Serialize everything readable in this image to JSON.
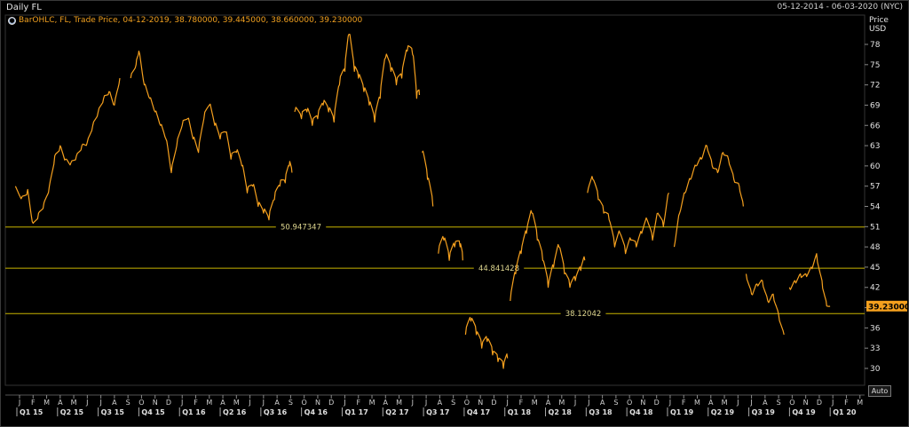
{
  "header": {
    "title": "Daily FL",
    "date_range": "05-12-2014 - 06-03-2020 (NYC)"
  },
  "legend": {
    "text": "BarOHLC, FL, Trade Price, 04-12-2019, 38.780000, 39.445000, 38.660000, 39.230000"
  },
  "axis": {
    "y_title_1": "Price",
    "y_title_2": "USD",
    "auto_button": "Auto"
  },
  "colors": {
    "price": "#f5a01e",
    "levels": "#c8b400",
    "last_price_box": "#f5a01e",
    "background": "#000000"
  },
  "chart_data": {
    "type": "line",
    "series_kind": "daily OHLC bars",
    "ylim": [
      27.5,
      80.5
    ],
    "y_ticks": [
      30,
      33,
      36,
      39,
      42,
      45,
      48,
      51,
      54,
      57,
      60,
      63,
      66,
      69,
      72,
      75,
      78
    ],
    "months": [
      "J",
      "F",
      "M",
      "A",
      "M",
      "J",
      "J",
      "A",
      "S",
      "O",
      "N",
      "D",
      "J",
      "F",
      "M",
      "A",
      "M",
      "J",
      "J",
      "A",
      "S",
      "O",
      "N",
      "D",
      "J",
      "F",
      "M",
      "A",
      "M",
      "J",
      "J",
      "A",
      "S",
      "O",
      "N",
      "D",
      "J",
      "F",
      "M",
      "A",
      "M",
      "J",
      "J",
      "A",
      "S",
      "O",
      "N",
      "D",
      "J",
      "F",
      "M",
      "A",
      "M",
      "J",
      "J",
      "A",
      "S",
      "O",
      "N",
      "D",
      "J",
      "F",
      "M"
    ],
    "quarters": [
      "Q1 15",
      "Q2 15",
      "Q3 15",
      "Q4 15",
      "Q1 16",
      "Q2 16",
      "Q3 16",
      "Q4 16",
      "Q1 17",
      "Q2 17",
      "Q3 17",
      "Q4 17",
      "Q1 18",
      "Q2 18",
      "Q3 18",
      "Q4 18",
      "Q1 19",
      "Q2 19",
      "Q3 19",
      "Q4 19",
      "Q1 20"
    ],
    "horizontal_levels": [
      {
        "label": "50.947347",
        "value": 50.947347
      },
      {
        "label": "44.841428",
        "value": 44.841428
      },
      {
        "label": "38.12042",
        "value": 38.12042
      }
    ],
    "last_price": "39.230000",
    "x_index_range": [
      0,
      62
    ],
    "points": [
      [
        -0.3,
        57
      ],
      [
        0.2,
        55.5
      ],
      [
        0.6,
        56.5
      ],
      [
        1.0,
        51.5
      ],
      [
        1.4,
        53
      ],
      [
        1.8,
        54.5
      ],
      [
        2.2,
        57
      ],
      [
        2.6,
        61.5
      ],
      [
        3.0,
        63
      ],
      [
        3.4,
        61
      ],
      [
        3.8,
        60.5
      ],
      [
        4.2,
        61.5
      ],
      [
        4.6,
        63
      ],
      [
        5.0,
        63.5
      ],
      [
        5.4,
        66
      ],
      [
        5.8,
        68
      ],
      [
        6.2,
        70
      ],
      [
        6.6,
        71
      ],
      [
        7.0,
        69
      ],
      [
        7.4,
        73
      ],
      [
        7.8,
        66
      ],
      [
        8.2,
        73
      ],
      [
        8.6,
        75
      ],
      [
        8.8,
        77
      ],
      [
        9.2,
        72
      ],
      [
        9.6,
        70
      ],
      [
        10.0,
        68
      ],
      [
        10.4,
        66
      ],
      [
        10.8,
        64
      ],
      [
        11.2,
        59
      ],
      [
        11.6,
        63
      ],
      [
        12.0,
        66
      ],
      [
        12.4,
        67
      ],
      [
        12.8,
        64
      ],
      [
        13.2,
        62
      ],
      [
        13.6,
        67
      ],
      [
        14.0,
        69
      ],
      [
        14.4,
        66
      ],
      [
        14.8,
        64
      ],
      [
        15.2,
        65
      ],
      [
        15.6,
        61
      ],
      [
        16.0,
        62
      ],
      [
        16.4,
        60
      ],
      [
        16.8,
        56
      ],
      [
        17.2,
        57
      ],
      [
        17.6,
        54
      ],
      [
        18.0,
        53
      ],
      [
        18.4,
        52
      ],
      [
        18.8,
        55
      ],
      [
        19.2,
        57
      ],
      [
        19.6,
        57.5
      ],
      [
        19.9,
        60
      ],
      [
        20.1,
        59
      ],
      [
        20.3,
        68
      ],
      [
        20.8,
        67
      ],
      [
        21.2,
        68
      ],
      [
        21.6,
        66
      ],
      [
        22.0,
        67
      ],
      [
        22.4,
        69
      ],
      [
        22.8,
        68
      ],
      [
        23.2,
        66.5
      ],
      [
        23.6,
        72
      ],
      [
        24.0,
        74
      ],
      [
        24.3,
        79.5
      ],
      [
        24.7,
        74
      ],
      [
        25.0,
        73
      ],
      [
        25.4,
        71
      ],
      [
        25.8,
        69
      ],
      [
        26.2,
        66.5
      ],
      [
        26.6,
        70
      ],
      [
        27.0,
        76
      ],
      [
        27.4,
        74
      ],
      [
        27.8,
        72
      ],
      [
        28.2,
        73
      ],
      [
        28.6,
        77
      ],
      [
        29.0,
        76.5
      ],
      [
        29.3,
        70
      ],
      [
        29.5,
        70.5
      ],
      [
        29.7,
        62
      ],
      [
        30.1,
        58
      ],
      [
        30.5,
        54
      ],
      [
        30.9,
        47
      ],
      [
        31.3,
        49
      ],
      [
        31.7,
        46
      ],
      [
        32.1,
        48
      ],
      [
        32.5,
        48
      ],
      [
        32.7,
        46
      ],
      [
        32.9,
        35
      ],
      [
        33.3,
        37
      ],
      [
        33.7,
        35
      ],
      [
        34.1,
        33
      ],
      [
        34.5,
        34
      ],
      [
        34.9,
        32
      ],
      [
        35.3,
        31
      ],
      [
        35.7,
        30
      ],
      [
        36.0,
        31.5
      ],
      [
        36.2,
        40
      ],
      [
        36.6,
        44
      ],
      [
        37.0,
        47
      ],
      [
        37.4,
        50
      ],
      [
        37.8,
        53
      ],
      [
        38.2,
        49
      ],
      [
        38.6,
        46
      ],
      [
        39.0,
        42
      ],
      [
        39.4,
        45
      ],
      [
        39.8,
        48
      ],
      [
        40.2,
        44
      ],
      [
        40.6,
        42
      ],
      [
        41.0,
        43
      ],
      [
        41.4,
        44.5
      ],
      [
        41.7,
        46
      ],
      [
        41.9,
        56
      ],
      [
        42.3,
        58
      ],
      [
        42.7,
        55
      ],
      [
        43.1,
        53
      ],
      [
        43.5,
        52
      ],
      [
        43.9,
        48
      ],
      [
        44.3,
        50
      ],
      [
        44.7,
        47
      ],
      [
        45.1,
        49
      ],
      [
        45.5,
        48
      ],
      [
        45.9,
        50
      ],
      [
        46.3,
        52
      ],
      [
        46.7,
        49
      ],
      [
        47.1,
        53
      ],
      [
        47.5,
        51
      ],
      [
        47.9,
        56
      ],
      [
        48.3,
        48
      ],
      [
        48.7,
        53
      ],
      [
        49.1,
        56
      ],
      [
        49.5,
        58
      ],
      [
        49.9,
        60
      ],
      [
        50.3,
        61
      ],
      [
        50.7,
        63
      ],
      [
        51.1,
        60
      ],
      [
        51.5,
        59
      ],
      [
        51.9,
        62
      ],
      [
        52.3,
        61
      ],
      [
        52.7,
        58
      ],
      [
        53.1,
        57
      ],
      [
        53.4,
        54
      ],
      [
        53.6,
        44
      ],
      [
        54.0,
        41
      ],
      [
        54.4,
        42.5
      ],
      [
        54.8,
        43
      ],
      [
        55.2,
        40
      ],
      [
        55.6,
        41
      ],
      [
        56.0,
        38
      ],
      [
        56.4,
        35
      ],
      [
        56.8,
        42
      ],
      [
        57.2,
        43
      ],
      [
        57.6,
        44
      ],
      [
        58.0,
        44
      ],
      [
        58.4,
        45
      ],
      [
        58.8,
        47
      ],
      [
        59.2,
        43
      ],
      [
        59.5,
        40
      ],
      [
        59.8,
        39.2
      ]
    ]
  }
}
